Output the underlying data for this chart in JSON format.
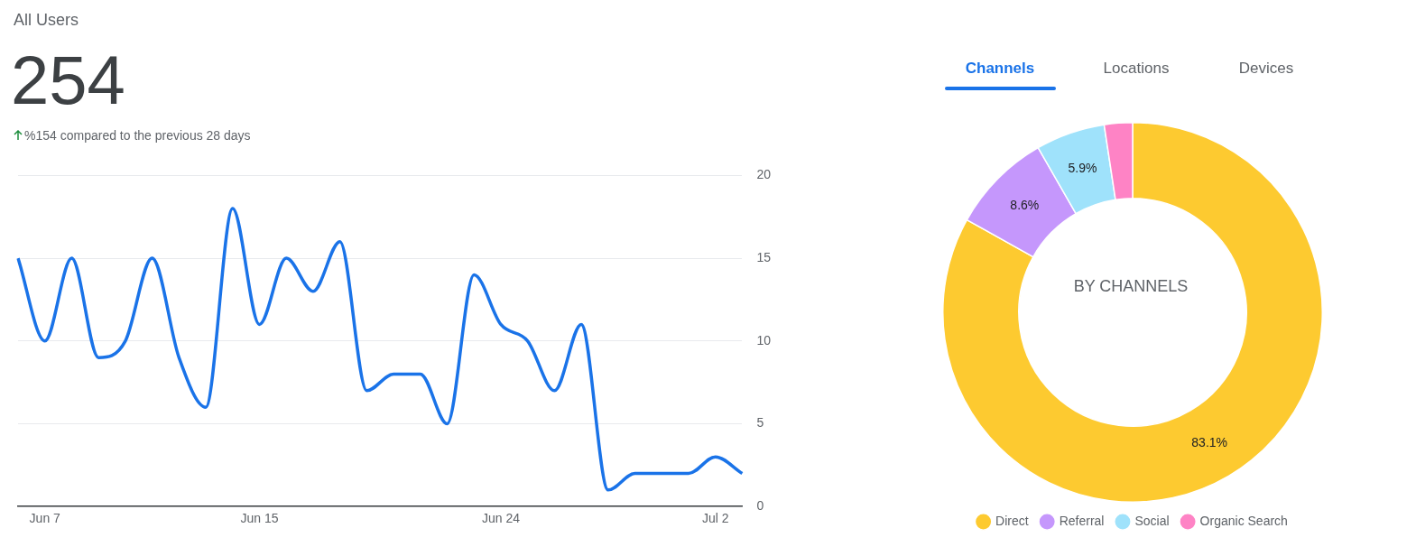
{
  "chart_data": [
    {
      "type": "line",
      "title": "All Users",
      "subtitle": "254",
      "annotations": [
        "%154 compared to the previous 28 days"
      ],
      "categories": [
        null,
        "Jun 7",
        null,
        null,
        null,
        null,
        null,
        null,
        null,
        "Jun 15",
        null,
        null,
        null,
        null,
        null,
        null,
        null,
        null,
        "Jun 24",
        null,
        null,
        null,
        null,
        null,
        null,
        null,
        "Jul 2",
        null
      ],
      "series": [
        {
          "color": "#1a73e8",
          "values": [
            15,
            10,
            15,
            9,
            10,
            15,
            9,
            6,
            18,
            11,
            15,
            13,
            16,
            7,
            8,
            8,
            5,
            14,
            11,
            10,
            7,
            11,
            1,
            2,
            2,
            2,
            3,
            2
          ]
        }
      ],
      "ylim": [
        0,
        20
      ],
      "yticks": [
        0,
        5,
        10,
        15,
        20
      ],
      "grid": "y",
      "marker": "none",
      "legend": false
    },
    {
      "type": "donut",
      "title": "BY CHANNELS",
      "annotations": [
        "Channels",
        "Locations",
        "Devices"
      ],
      "categories": [
        "Direct",
        "Referral",
        "Social",
        "Organic Search"
      ],
      "values": [
        83.1,
        8.6,
        5.9,
        2.4
      ],
      "colors": [
        "#fdca30",
        "#c597fc",
        "#9fe2fb",
        "#fe83c5"
      ],
      "value_labels": [
        "83.1%",
        "8.6%",
        "5.9%",
        null
      ],
      "legend": "bottom"
    }
  ]
}
